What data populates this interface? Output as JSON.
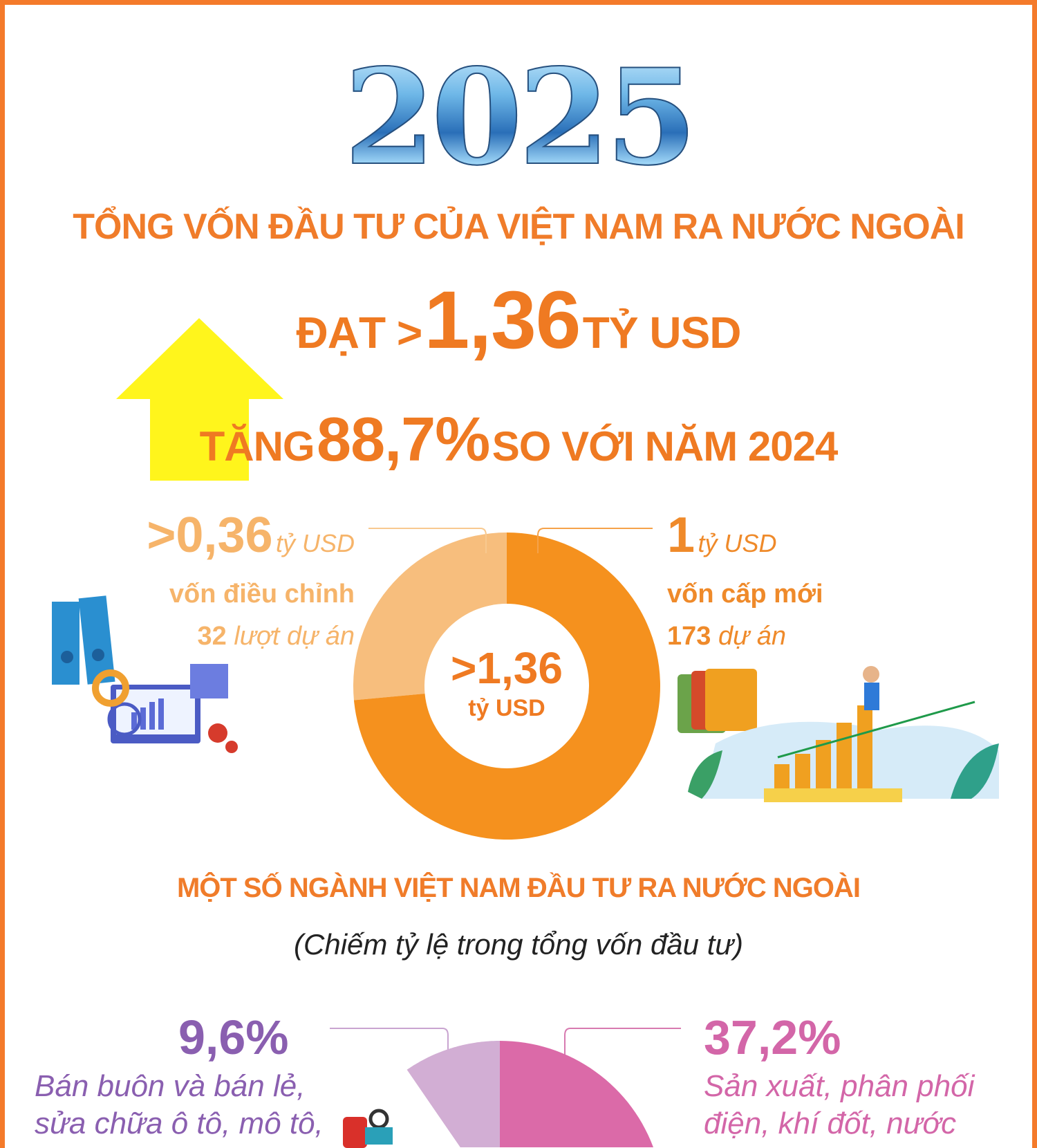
{
  "header": {
    "year": "2025",
    "title": "TỔNG VỐN ĐẦU TƯ CỦA VIỆT NAM RA NƯỚC NGOÀI",
    "reach_prefix": "ĐẠT >",
    "reach_value": "1,36",
    "reach_unit": "TỶ USD",
    "growth_prefix": "TĂNG",
    "growth_value": "88,7%",
    "growth_suffix": "SO VỚI NĂM 2024"
  },
  "donut": {
    "center_value": ">1,36",
    "center_unit": "tỷ USD",
    "adjusted": {
      "value": ">0,36",
      "unit": "tỷ USD",
      "label": "vốn điều chỉnh",
      "count_num": "32",
      "count_text": "lượt dự án",
      "amount": 0.36,
      "color": "#f7be7d"
    },
    "new": {
      "value": "1",
      "unit": "tỷ USD",
      "label": "vốn cấp mới",
      "count_num": "173",
      "count_text": "dự án",
      "amount": 1.0,
      "color": "#f5911e"
    }
  },
  "sectors": {
    "title": "MỘT SỐ NGÀNH VIỆT NAM ĐẦU TƯ RA NƯỚC NGOÀI",
    "subtitle": "(Chiếm tỷ lệ trong tổng vốn đầu tư)",
    "items": [
      {
        "pct": "9,6%",
        "value": 9.6,
        "line1": "Bán buôn và bán lẻ,",
        "line2": "sửa chữa ô tô, mô tô,",
        "color": "#8a5fb0",
        "slice_color": "#d2aed4"
      },
      {
        "pct": "37,2%",
        "value": 37.2,
        "line1": "Sản xuất, phân phối",
        "line2": "điện, khí đốt, nước",
        "color": "#d366a8",
        "slice_color": "#db6aa8"
      }
    ]
  },
  "colors": {
    "border": "#f47a2a",
    "accent": "#ef7a22",
    "arrow": "#fff51c"
  }
}
